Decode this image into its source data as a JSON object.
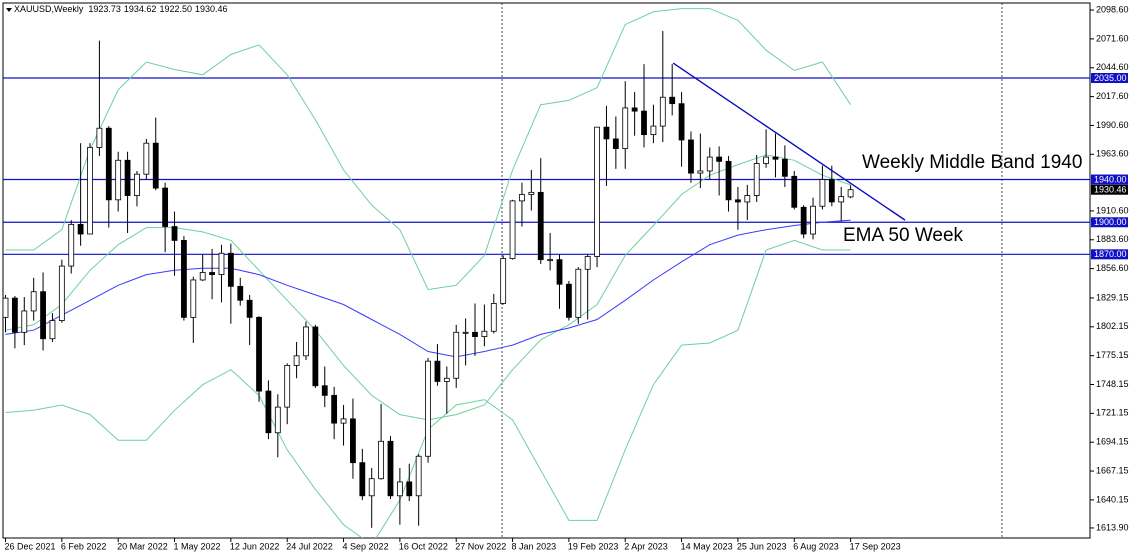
{
  "chart_data": {
    "type": "candlestick",
    "title": "XAUUSD,Weekly",
    "header_values": [
      1923.73,
      1934.62,
      1922.5,
      1930.46
    ],
    "header_labels": [
      "1923.73",
      "1934.62",
      "1922.50",
      "1930.46"
    ],
    "categories": [
      "26 Dec 2021",
      null,
      null,
      null,
      null,
      null,
      "6 Feb 2022",
      null,
      null,
      null,
      null,
      null,
      "20 Mar 2022",
      null,
      null,
      null,
      null,
      null,
      "1 May 2022",
      null,
      null,
      null,
      null,
      null,
      "12 Jun 2022",
      null,
      null,
      null,
      null,
      null,
      "24 Jul 2022",
      null,
      null,
      null,
      null,
      null,
      "4 Sep 2022",
      null,
      null,
      null,
      null,
      null,
      "16 Oct 2022",
      null,
      null,
      null,
      null,
      null,
      "27 Nov 2022",
      null,
      null,
      null,
      null,
      null,
      "8 Jan 2023",
      null,
      null,
      null,
      null,
      null,
      "19 Feb 2023",
      null,
      null,
      null,
      null,
      null,
      "2 Apr 2023",
      null,
      null,
      null,
      null,
      null,
      "14 May 2023",
      null,
      null,
      null,
      null,
      null,
      "25 Jun 2023",
      null,
      null,
      null,
      null,
      null,
      "6 Aug 2023",
      null,
      null,
      null,
      null,
      null,
      "17 Sep 2023"
    ],
    "open": [
      1811,
      1829,
      1797,
      1817,
      1835,
      1791,
      1808,
      1859,
      1898,
      1889,
      1970,
      1988,
      1921,
      1958,
      1925,
      1945,
      1974,
      1932,
      1896,
      1883,
      1811,
      1846,
      1853,
      1851,
      1871,
      1840,
      1827,
      1811,
      1742,
      1703,
      1727,
      1766,
      1775,
      1802,
      1747,
      1738,
      1712,
      1716,
      1675,
      1644,
      1660,
      1695,
      1644,
      1657,
      1644,
      1681,
      1770,
      1751,
      1754,
      1797,
      1797,
      1793,
      1798,
      1824,
      1866,
      1920,
      1926,
      1928,
      1865,
      1865,
      1842,
      1811,
      1856,
      1868,
      1989,
      1978,
      1969,
      2007,
      2004,
      1982,
      1990,
      2017,
      2011,
      1977,
      1946,
      1948,
      1961,
      1957,
      1921,
      1919,
      1925,
      1955,
      1961,
      1959,
      1943,
      1914,
      1889,
      1915,
      1940,
      1919,
      1923.73
    ],
    "high": [
      1832,
      1831,
      1830,
      1848,
      1853,
      1815,
      1865,
      1902,
      1974,
      1974,
      2070,
      1990,
      1966,
      1966,
      1948,
      1978,
      1998,
      1937,
      1910,
      1887,
      1849,
      1870,
      1875,
      1879,
      1880,
      1848,
      1832,
      1812,
      1752,
      1739,
      1768,
      1788,
      1807,
      1804,
      1765,
      1746,
      1729,
      1735,
      1688,
      1670,
      1730,
      1700,
      1670,
      1674,
      1683,
      1773,
      1786,
      1765,
      1804,
      1810,
      1824,
      1823,
      1833,
      1869,
      1921,
      1937,
      1949,
      1960,
      1890,
      1870,
      1845,
      1858,
      1870,
      1989,
      2009,
      1999,
      2032,
      2022,
      2048,
      2010,
      2079,
      2048,
      2022,
      1985,
      1983,
      1970,
      1971,
      1962,
      1933,
      1935,
      1963,
      1987,
      1983,
      1972,
      1948,
      1916,
      1923,
      1953,
      1953,
      1933,
      1934.62
    ],
    "low": [
      1797,
      1782,
      1785,
      1808,
      1780,
      1788,
      1806,
      1852,
      1878,
      1889,
      1962,
      1895,
      1910,
      1890,
      1915,
      1940,
      1930,
      1872,
      1850,
      1808,
      1787,
      1845,
      1828,
      1825,
      1805,
      1822,
      1785,
      1732,
      1697,
      1680,
      1711,
      1754,
      1771,
      1745,
      1727,
      1697,
      1691,
      1660,
      1640,
      1614,
      1659,
      1641,
      1617,
      1639,
      1616,
      1675,
      1747,
      1721,
      1745,
      1766,
      1775,
      1784,
      1796,
      1823,
      1865,
      1896,
      1911,
      1861,
      1855,
      1819,
      1808,
      1805,
      1809,
      1858,
      1934,
      1950,
      1950,
      1981,
      1970,
      1974,
      1975,
      2000,
      1952,
      1937,
      1932,
      1940,
      1925,
      1910,
      1893,
      1902,
      1919,
      1951,
      1942,
      1933,
      1912,
      1885,
      1884,
      1912,
      1915,
      1901,
      1922.5
    ],
    "close": [
      1829,
      1797,
      1817,
      1835,
      1791,
      1808,
      1859,
      1898,
      1889,
      1970,
      1988,
      1921,
      1958,
      1925,
      1945,
      1974,
      1932,
      1896,
      1883,
      1811,
      1846,
      1853,
      1851,
      1871,
      1840,
      1827,
      1811,
      1742,
      1703,
      1727,
      1766,
      1775,
      1802,
      1747,
      1738,
      1712,
      1716,
      1675,
      1644,
      1660,
      1695,
      1644,
      1657,
      1644,
      1681,
      1770,
      1751,
      1754,
      1797,
      1797,
      1793,
      1798,
      1824,
      1866,
      1920,
      1926,
      1928,
      1865,
      1865,
      1842,
      1811,
      1856,
      1868,
      1989,
      1978,
      1969,
      2007,
      2004,
      1982,
      1990,
      2017,
      2011,
      1977,
      1946,
      1948,
      1961,
      1957,
      1921,
      1919,
      1925,
      1955,
      1961,
      1959,
      1943,
      1914,
      1889,
      1915,
      1940,
      1919,
      1924,
      1930.46
    ],
    "color_up": "#ffffff",
    "color_down": "#000000",
    "ylim": [
      1604.5,
      2105.2
    ],
    "yticks": [
      {
        "value": 2098.6,
        "label": "2098.60"
      },
      {
        "value": 2071.6,
        "label": "2071.60"
      },
      {
        "value": 2044.6,
        "label": "2044.60"
      },
      {
        "value": 2017.6,
        "label": "2017.60"
      },
      {
        "value": 1990.6,
        "label": "1990.60"
      },
      {
        "value": 1963.6,
        "label": "1963.60"
      },
      {
        "value": 1910.6,
        "label": "1910.60"
      },
      {
        "value": 1883.6,
        "label": "1883.60"
      },
      {
        "value": 1856.6,
        "label": "1856.60"
      },
      {
        "value": 1829.15,
        "label": "1829.15"
      },
      {
        "value": 1802.15,
        "label": "1802.15"
      },
      {
        "value": 1775.15,
        "label": "1775.15"
      },
      {
        "value": 1748.15,
        "label": "1748.15"
      },
      {
        "value": 1721.15,
        "label": "1721.15"
      },
      {
        "value": 1694.15,
        "label": "1694.15"
      },
      {
        "value": 1667.15,
        "label": "1667.15"
      },
      {
        "value": 1640.15,
        "label": "1640.15"
      },
      {
        "value": 1613.9,
        "label": "1613.90"
      }
    ],
    "indicator_x": [
      0,
      3,
      6,
      9,
      12,
      15,
      18,
      21,
      24,
      27,
      30,
      33,
      36,
      39,
      42,
      45,
      48,
      51,
      54,
      57,
      60,
      63,
      66,
      69,
      72,
      75,
      78,
      81,
      84,
      87,
      90
    ],
    "indicators": [
      {
        "color": "#6fcf9f",
        "values": [
          1874,
          1874,
          1893,
          1968,
          2024,
          2050,
          2043,
          2038,
          2057,
          2066,
          2038,
          1996,
          1949,
          1916,
          1893,
          1837,
          1841,
          1869,
          1949,
          2010,
          2014,
          2026,
          2085,
          2097,
          2100,
          2100,
          2089,
          2061,
          2042,
          2050,
          2010
        ]
      },
      {
        "color": "#6fcf9f",
        "values": [
          1799,
          1804,
          1823,
          1855,
          1879,
          1895,
          1895,
          1891,
          1883,
          1855,
          1827,
          1799,
          1766,
          1738,
          1720,
          1715,
          1720,
          1729,
          1762,
          1790,
          1804,
          1823,
          1869,
          1897,
          1926,
          1944,
          1954,
          1963,
          1958,
          1944,
          1935
        ]
      },
      {
        "color": "#6fcf9f",
        "values": [
          1722,
          1724,
          1729,
          1720,
          1696,
          1696,
          1724,
          1748,
          1762,
          1738,
          1687,
          1650,
          1617,
          1598,
          1640,
          1706,
          1729,
          1734,
          1715,
          1668,
          1621,
          1621,
          1687,
          1748,
          1785,
          1787,
          1799,
          1874,
          1883,
          1874,
          1874
        ]
      },
      {
        "color": "#3a3aff",
        "values": [
          1795,
          1799,
          1813,
          1827,
          1841,
          1851,
          1855,
          1857,
          1857,
          1851,
          1841,
          1832,
          1823,
          1809,
          1795,
          1779,
          1774,
          1779,
          1785,
          1795,
          1801,
          1809,
          1827,
          1846,
          1863,
          1879,
          1888,
          1893,
          1897,
          1900,
          1902
        ]
      }
    ],
    "levels": [
      {
        "value": 2035,
        "label": "2035.00"
      },
      {
        "value": 1940,
        "label": "1940.00"
      },
      {
        "value": 1900,
        "label": "1900.00"
      },
      {
        "value": 1870,
        "label": "1870.00"
      }
    ],
    "level_color": "#1010c8",
    "bid": {
      "value": 1930.46,
      "label": "1930.46"
    },
    "trendline": {
      "x": [
        71.1,
        95.8
      ],
      "values": [
        2049,
        1902
      ],
      "color": "#0a0ac0"
    },
    "annotations": [
      "Weekly Middle Band 1940",
      "EMA 50 Week"
    ],
    "annotation_color": "#1f3c9c"
  }
}
